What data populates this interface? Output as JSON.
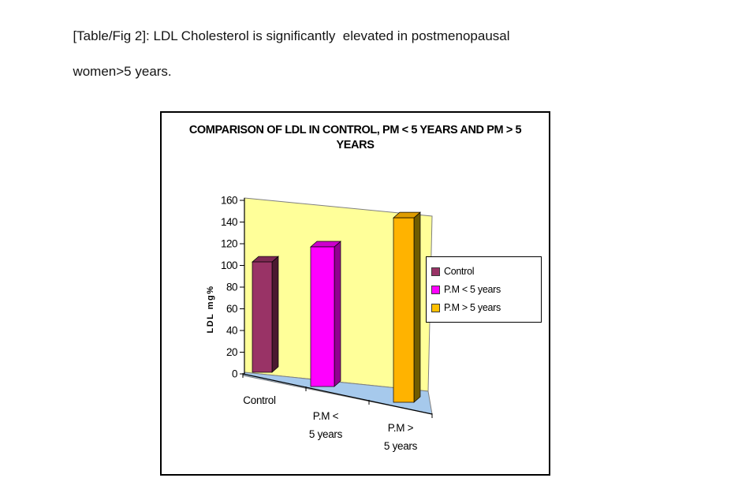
{
  "page": {
    "caption_line1": "[Table/Fig 2]: LDL Cholesterol is significantly  elevated in postmenopausal",
    "caption_line2": "women>5 years."
  },
  "chart_data": {
    "type": "bar",
    "projection": "3d-column",
    "title": "COMPARISON OF LDL IN CONTROL, PM < 5 YEARS AND PM > 5 YEARS",
    "title_lines": [
      "COMPARISON OF LDL IN CONTROL, PM < 5 YEARS AND PM > 5",
      "YEARS"
    ],
    "ylabel": "LDL mg%",
    "ylim": [
      0,
      160
    ],
    "yticks": [
      0,
      20,
      40,
      60,
      80,
      100,
      120,
      140,
      160
    ],
    "categories": [
      "Control",
      "P.M < 5 years",
      "P.M > 5 years"
    ],
    "category_label_lines": [
      [
        "Control"
      ],
      [
        "P.M <",
        "5 years"
      ],
      [
        "P.M >",
        "5 years"
      ]
    ],
    "values": [
      102,
      118,
      148
    ],
    "grid": false,
    "legend_position": "middle-right",
    "legend": [
      {
        "label": "Control",
        "color": "#993366"
      },
      {
        "label": "P.M < 5 years",
        "color": "#FF00FF"
      },
      {
        "label": "P.M > 5 years",
        "color": "#FFC000"
      }
    ],
    "colors": {
      "bar_fronts": [
        "#993366",
        "#FF00FF",
        "#FFB300"
      ],
      "bar_sides": [
        "#4A1930",
        "#910091",
        "#6F5B00"
      ],
      "bar_tops": [
        "#7E2A54",
        "#CC00CC",
        "#DE9C00"
      ],
      "wall": "#FFFF99",
      "floor": "#A6C9EC",
      "outline": "#808080",
      "axis": "#000000",
      "chart_border": "#000000"
    }
  }
}
